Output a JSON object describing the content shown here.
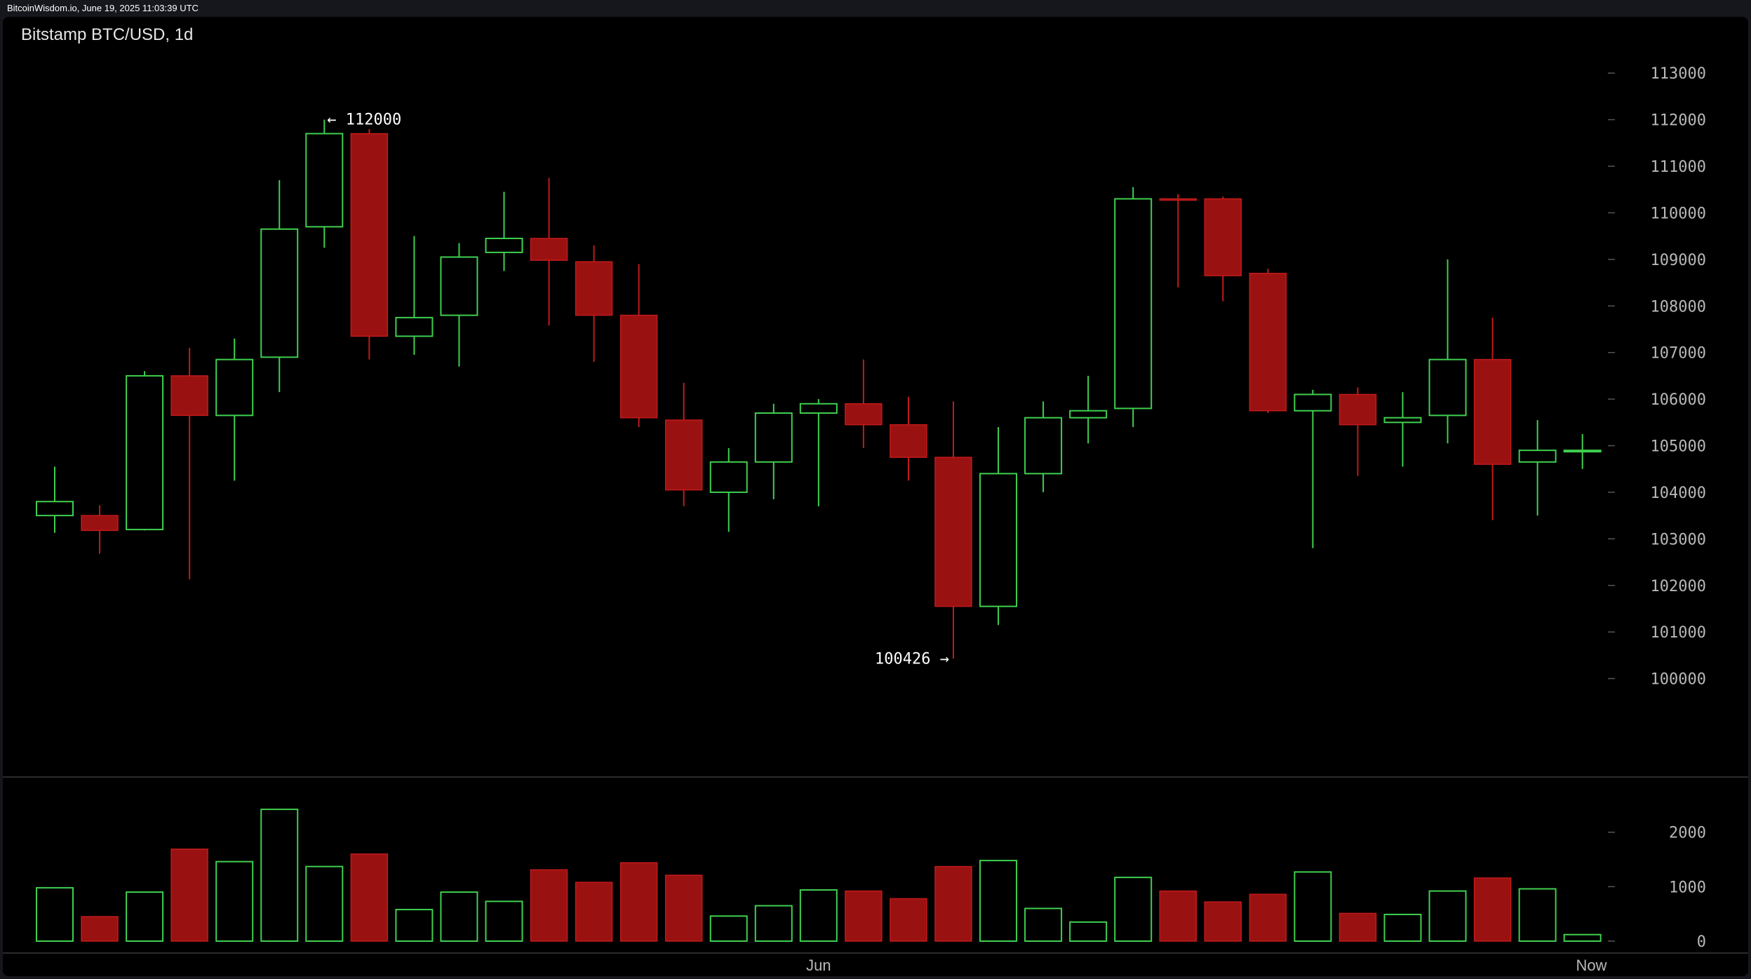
{
  "header": {
    "source": "BitcoinWisdom.io, June 19, 2025 11:03:39 UTC"
  },
  "colors": {
    "up": "#3fcf4f",
    "down": "#9a1111",
    "down_border": "#c21a1a",
    "axis_text": "#b8b8b8",
    "tick": "#555555",
    "divider": "#3a3a3a",
    "background": "#000000"
  },
  "chart_data": {
    "type": "candlestick",
    "title": "Bitstamp BTC/USD, 1d",
    "ylim": [
      99000,
      113500
    ],
    "yticks": [
      100000,
      101000,
      102000,
      103000,
      104000,
      105000,
      106000,
      107000,
      108000,
      109000,
      110000,
      111000,
      112000,
      113000
    ],
    "volume_ylim": [
      0,
      2550
    ],
    "volume_ticks": [
      0,
      1000,
      2000
    ],
    "x_labels": [
      {
        "label": "Jun",
        "index": 17
      },
      {
        "label": "Now",
        "index": 34.2
      }
    ],
    "annotations": [
      {
        "text": "← 112000",
        "value": 112000,
        "index": 6,
        "side": "right"
      },
      {
        "text": "100426 →",
        "value": 100426,
        "index": 20,
        "side": "left"
      }
    ],
    "candles": [
      {
        "o": 103500,
        "h": 104550,
        "l": 103130,
        "c": 103800,
        "v": 980
      },
      {
        "o": 103500,
        "h": 103720,
        "l": 102680,
        "c": 103180,
        "v": 450
      },
      {
        "o": 103200,
        "h": 106600,
        "l": 103180,
        "c": 106500,
        "v": 900
      },
      {
        "o": 106500,
        "h": 107100,
        "l": 102130,
        "c": 105650,
        "v": 1690
      },
      {
        "o": 105650,
        "h": 107300,
        "l": 104250,
        "c": 106850,
        "v": 1460
      },
      {
        "o": 106900,
        "h": 110700,
        "l": 106150,
        "c": 109650,
        "v": 2420
      },
      {
        "o": 109700,
        "h": 112000,
        "l": 109250,
        "c": 111700,
        "v": 1370
      },
      {
        "o": 111700,
        "h": 111800,
        "l": 106850,
        "c": 107350,
        "v": 1600
      },
      {
        "o": 107350,
        "h": 109500,
        "l": 106950,
        "c": 107750,
        "v": 580
      },
      {
        "o": 107800,
        "h": 109350,
        "l": 106700,
        "c": 109050,
        "v": 900
      },
      {
        "o": 109150,
        "h": 110450,
        "l": 108750,
        "c": 109450,
        "v": 730
      },
      {
        "o": 109450,
        "h": 110750,
        "l": 107580,
        "c": 108980,
        "v": 1310
      },
      {
        "o": 108950,
        "h": 109300,
        "l": 106800,
        "c": 107800,
        "v": 1080
      },
      {
        "o": 107800,
        "h": 108900,
        "l": 105400,
        "c": 105600,
        "v": 1440
      },
      {
        "o": 105550,
        "h": 106350,
        "l": 103700,
        "c": 104050,
        "v": 1210
      },
      {
        "o": 104000,
        "h": 104950,
        "l": 103150,
        "c": 104650,
        "v": 460
      },
      {
        "o": 104650,
        "h": 105900,
        "l": 103850,
        "c": 105700,
        "v": 650
      },
      {
        "o": 105700,
        "h": 106000,
        "l": 103700,
        "c": 105900,
        "v": 940
      },
      {
        "o": 105900,
        "h": 106850,
        "l": 104950,
        "c": 105450,
        "v": 920
      },
      {
        "o": 105450,
        "h": 106050,
        "l": 104250,
        "c": 104750,
        "v": 780
      },
      {
        "o": 104750,
        "h": 105950,
        "l": 100426,
        "c": 101550,
        "v": 1370
      },
      {
        "o": 101550,
        "h": 105400,
        "l": 101150,
        "c": 104400,
        "v": 1480
      },
      {
        "o": 104400,
        "h": 105950,
        "l": 104000,
        "c": 105600,
        "v": 600
      },
      {
        "o": 105600,
        "h": 106500,
        "l": 105050,
        "c": 105750,
        "v": 350
      },
      {
        "o": 105800,
        "h": 110550,
        "l": 105400,
        "c": 110300,
        "v": 1170
      },
      {
        "o": 110300,
        "h": 110400,
        "l": 108400,
        "c": 110280,
        "v": 920
      },
      {
        "o": 110300,
        "h": 110350,
        "l": 108100,
        "c": 108650,
        "v": 720
      },
      {
        "o": 108700,
        "h": 108800,
        "l": 105700,
        "c": 105750,
        "v": 860
      },
      {
        "o": 105750,
        "h": 106200,
        "l": 102800,
        "c": 106100,
        "v": 1270
      },
      {
        "o": 106100,
        "h": 106250,
        "l": 104350,
        "c": 105450,
        "v": 510
      },
      {
        "o": 105500,
        "h": 106150,
        "l": 104550,
        "c": 105600,
        "v": 490
      },
      {
        "o": 105650,
        "h": 109000,
        "l": 105050,
        "c": 106850,
        "v": 920
      },
      {
        "o": 106850,
        "h": 107750,
        "l": 103400,
        "c": 104600,
        "v": 1160
      },
      {
        "o": 104650,
        "h": 105550,
        "l": 103500,
        "c": 104900,
        "v": 960
      },
      {
        "o": 104900,
        "h": 105250,
        "l": 104500,
        "c": 104900,
        "v": 120
      }
    ]
  }
}
